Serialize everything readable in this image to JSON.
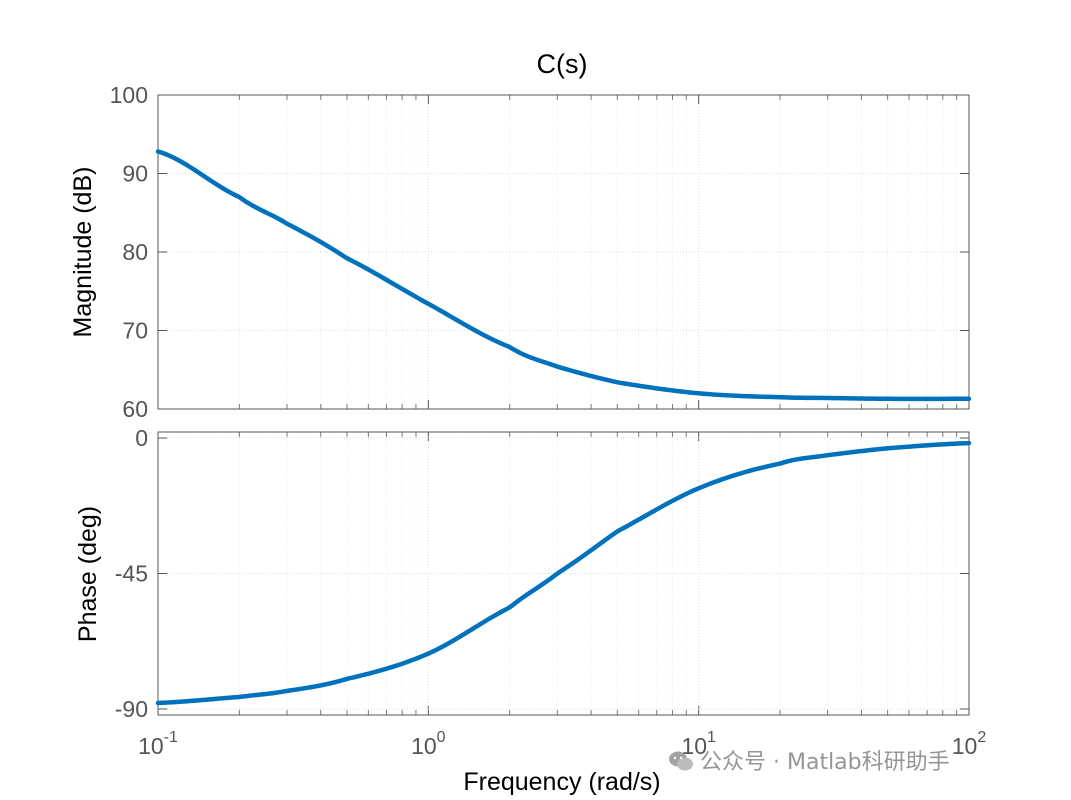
{
  "chart_data": {
    "type": "line",
    "title": "C(s)",
    "xlabel": "Frequency  (rad/s)",
    "xscale": "log",
    "xlim": [
      0.1,
      100
    ],
    "x_ticks": [
      {
        "value": 0.1,
        "base": "10",
        "exp": "-1"
      },
      {
        "value": 1,
        "base": "10",
        "exp": "0"
      },
      {
        "value": 10,
        "base": "10",
        "exp": "1"
      },
      {
        "value": 100,
        "base": "10",
        "exp": "2"
      }
    ],
    "subplots": [
      {
        "name": "magnitude",
        "ylabel": "Magnitude (dB)",
        "ylim": [
          60,
          100
        ],
        "y_ticks": [
          100,
          90,
          80,
          70,
          60
        ],
        "y_tick_labels": [
          "100",
          "90",
          "80",
          "70",
          "60"
        ],
        "series": [
          {
            "name": "C(s)",
            "color": "#0072BD",
            "x": [
              0.1,
              0.2,
              0.3,
              0.5,
              1,
              2,
              3,
              5,
              10,
              20,
              30,
              50,
              100
            ],
            "y": [
              92.8,
              87.0,
              83.6,
              79.2,
              73.4,
              67.9,
              65.4,
              63.4,
              62.0,
              61.5,
              61.4,
              61.3,
              61.3
            ]
          }
        ]
      },
      {
        "name": "phase",
        "ylabel": "Phase (deg)",
        "ylim": [
          -92,
          2
        ],
        "y_ticks": [
          0,
          -45,
          -90
        ],
        "y_tick_labels": [
          "0",
          "-45",
          "-90"
        ],
        "series": [
          {
            "name": "C(s)",
            "color": "#0072BD",
            "x": [
              0.1,
              0.2,
              0.3,
              0.5,
              1,
              2,
              3,
              5,
              10,
              20,
              30,
              50,
              100
            ],
            "y": [
              -88.0,
              -86.0,
              -84.0,
              -80.0,
              -71.6,
              -56.3,
              -45.0,
              -31.0,
              -16.7,
              -8.5,
              -5.7,
              -3.4,
              -1.7
            ]
          }
        ]
      }
    ]
  },
  "watermark": {
    "icon": "wechat-icon",
    "text": "公众号 · Matlab科研助手"
  }
}
